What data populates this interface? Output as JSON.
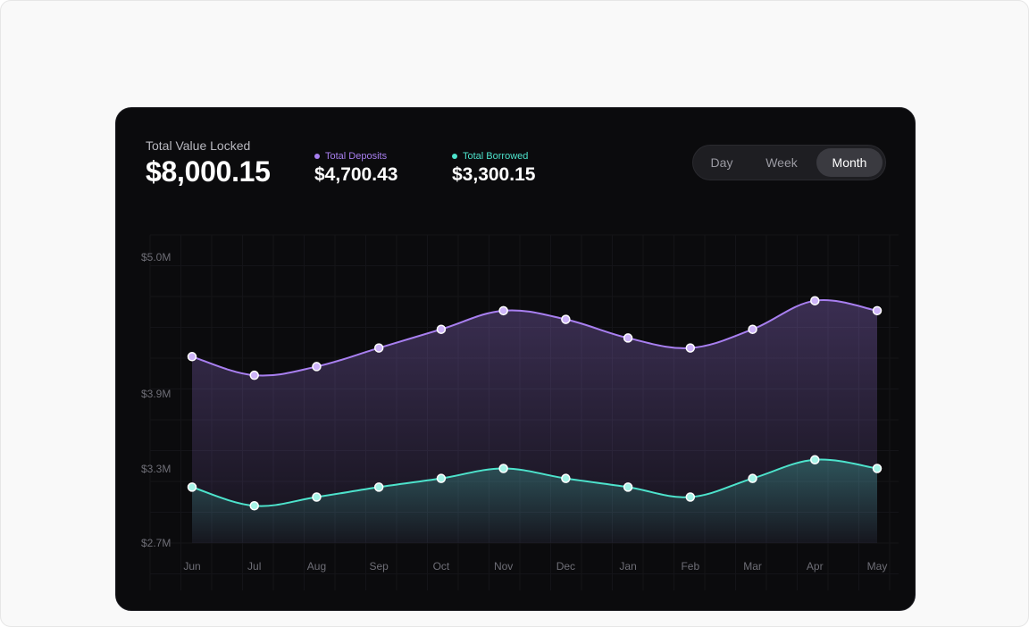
{
  "summary": {
    "tvl_label": "Total Value Locked",
    "tvl_value": "$8,000.15",
    "deposits_label": "Total Deposits",
    "deposits_value": "$4,700.43",
    "borrowed_label": "Total Borrowed",
    "borrowed_value": "$3,300.15"
  },
  "range_toggle": {
    "options": [
      "Day",
      "Week",
      "Month"
    ],
    "selected": "Month"
  },
  "colors": {
    "deposits": "#a87ff0",
    "borrowed": "#4de3cc"
  },
  "chart_data": {
    "type": "area",
    "categories": [
      "Jun",
      "Jul",
      "Aug",
      "Sep",
      "Oct",
      "Nov",
      "Dec",
      "Jan",
      "Feb",
      "Mar",
      "Apr",
      "May"
    ],
    "y_ticks": [
      "$5.0M",
      "$3.9M",
      "$3.3M",
      "$2.7M"
    ],
    "series": [
      {
        "name": "Total Deposits",
        "values": [
          4.2,
          4.05,
          4.12,
          4.27,
          4.42,
          4.57,
          4.5,
          4.35,
          4.27,
          4.42,
          4.65,
          4.57
        ]
      },
      {
        "name": "Total Borrowed",
        "values": [
          3.15,
          3.0,
          3.07,
          3.15,
          3.22,
          3.3,
          3.22,
          3.15,
          3.07,
          3.22,
          3.37,
          3.3
        ]
      }
    ],
    "grid": true,
    "legend": "top-left"
  }
}
